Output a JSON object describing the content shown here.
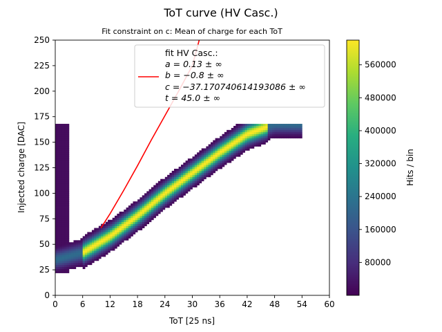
{
  "figure": {
    "title": "ToT curve (HV Casc.)",
    "subtitle": "Fit constraint on c: Mean of charge for each ToT"
  },
  "chart_data": {
    "type": "heatmap",
    "xlabel": "ToT [25 ns]",
    "ylabel": "Injected charge [DAC]",
    "xlim": [
      0,
      60
    ],
    "ylim": [
      0,
      250
    ],
    "xticks": [
      0,
      6,
      12,
      18,
      24,
      30,
      36,
      42,
      48,
      54,
      60
    ],
    "yticks": [
      0,
      25,
      50,
      75,
      100,
      125,
      150,
      175,
      200,
      225,
      250
    ],
    "colormap": "viridis",
    "colorbar": {
      "label": "Hits / bin",
      "range": [
        0,
        620000
      ],
      "ticks": [
        80000,
        160000,
        240000,
        320000,
        400000,
        480000,
        560000
      ],
      "tick_labels": [
        "80000",
        "160000",
        "240000",
        "320000",
        "400000",
        "480000",
        "560000"
      ]
    },
    "band": {
      "tot_range": [
        0,
        54
      ],
      "charge_range": [
        22,
        168
      ],
      "ridge": [
        [
          0,
          35
        ],
        [
          6,
          42
        ],
        [
          12,
          58
        ],
        [
          18,
          78
        ],
        [
          24,
          100
        ],
        [
          30,
          120
        ],
        [
          36,
          140
        ],
        [
          42,
          158
        ],
        [
          48,
          168
        ]
      ],
      "peak_hits": 600000
    },
    "fit_curve": {
      "label": "fit HV Casc.:",
      "color": "#ff0000",
      "points": [
        [
          10,
          66
        ],
        [
          12,
          80
        ],
        [
          15,
          103
        ],
        [
          18,
          127
        ],
        [
          21,
          152
        ],
        [
          24,
          176
        ],
        [
          27,
          200
        ],
        [
          30,
          225
        ],
        [
          31.5,
          250
        ]
      ]
    },
    "legend": {
      "placement": "top-right",
      "title": "fit HV Casc.:",
      "lines": [
        "a = 0.13 ± ∞",
        "b = −0.8 ± ∞",
        "c = −37.170740614193086 ± ∞",
        "t = 45.0 ± ∞"
      ]
    }
  }
}
